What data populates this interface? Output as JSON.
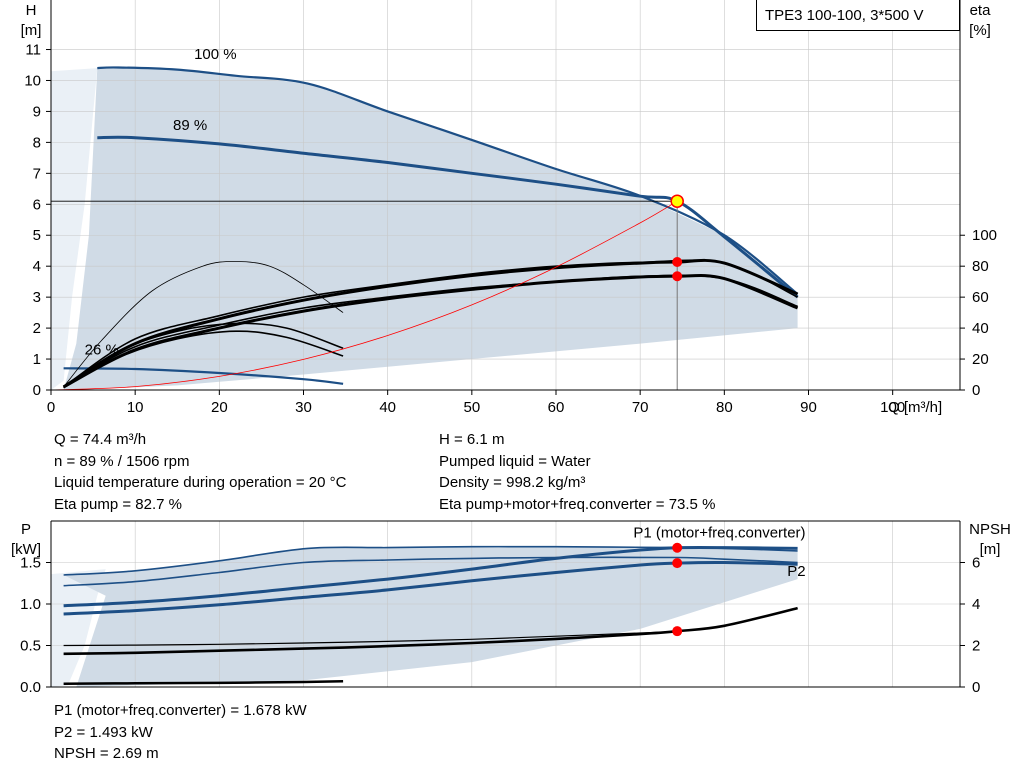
{
  "model_label": "TPE3 100-100, 3*500 V",
  "top_info": {
    "left": [
      "Q = 74.4 m³/h",
      "n = 89 % / 1506 rpm",
      "Liquid temperature during operation = 20 °C",
      "Eta pump = 82.7 %"
    ],
    "right": [
      "H = 6.1 m",
      "Pumped liquid = Water",
      "Density = 998.2 kg/m³",
      "Eta pump+motor+freq.converter = 73.5 %"
    ]
  },
  "bottom_info": [
    "P1 (motor+freq.converter) = 1.678 kW",
    "P2 = 1.493 kW",
    "NPSH = 2.69 m"
  ],
  "colors": {
    "curve_blue": "#1d4f86",
    "area_fill": "#d0dbe6",
    "area_fill_light": "#eaf0f6",
    "operating_point": "#ff0000",
    "system_curve": "#ff0000"
  },
  "chart_data": [
    {
      "type": "line",
      "name": "head_efficiency",
      "xlabel": "Q [m³/h]",
      "ylabel": "H\n[m]",
      "ylabel_right": "eta\n[%]",
      "x_ticks": [
        0,
        10,
        20,
        30,
        40,
        50,
        60,
        70,
        80,
        90,
        100
      ],
      "y_ticks": [
        0,
        1,
        2,
        3,
        4,
        5,
        6,
        7,
        8,
        9,
        10,
        11
      ],
      "y_right_ticks": [
        0,
        20,
        40,
        60,
        80,
        100
      ],
      "xlim": [
        0,
        108
      ],
      "ylim": [
        0,
        12.6
      ],
      "y_right_lim": [
        0,
        252
      ],
      "grid": true,
      "curve_labels": [
        {
          "text": "100 %",
          "x": 17,
          "y": 10.7
        },
        {
          "text": "89 %",
          "x": 14.5,
          "y": 8.4
        },
        {
          "text": "26 %",
          "x": 4,
          "y": 1.15
        }
      ],
      "series": [
        {
          "role": "head",
          "speed": "100 %",
          "x": [
            5.5,
            8,
            15,
            22,
            30.5,
            40,
            50,
            60,
            70,
            80,
            88.7
          ],
          "y": [
            10.4,
            10.42,
            10.35,
            10.15,
            9.9,
            9.0,
            8.08,
            7.14,
            6.27,
            5.0,
            3.1
          ]
        },
        {
          "role": "head",
          "speed": "89 %",
          "x": [
            5.5,
            10,
            20,
            30,
            40,
            50,
            60,
            70,
            74.4,
            80,
            88.7
          ],
          "y": [
            8.15,
            8.15,
            7.95,
            7.65,
            7.35,
            7.0,
            6.65,
            6.26,
            6.1,
            4.95,
            3.0
          ]
        },
        {
          "role": "head",
          "speed": "26 %",
          "x": [
            1.5,
            10,
            20,
            30,
            34.7
          ],
          "y": [
            0.7,
            0.68,
            0.55,
            0.35,
            0.2
          ]
        },
        {
          "role": "eta pump+motor+freq.converter",
          "speed": "100 %",
          "x": [
            1.5,
            10,
            20,
            30,
            40,
            50,
            60,
            70,
            80,
            88.7
          ],
          "y_eta": [
            2,
            33,
            48,
            60,
            68,
            75,
            80,
            82.5,
            82,
            60
          ]
        },
        {
          "role": "eta pump",
          "speed": "100 %",
          "x": [
            1.5,
            10,
            20,
            30,
            40,
            50,
            60,
            70,
            80,
            88.7
          ],
          "y_eta": [
            2,
            28,
            42,
            53,
            60,
            66,
            70,
            73.5,
            72,
            54
          ]
        },
        {
          "role": "eta pump",
          "speed": "89 %",
          "x": [
            1.5,
            10,
            20,
            30,
            40,
            50,
            60,
            70,
            74.4,
            80,
            88.7
          ],
          "y_eta": [
            2,
            30,
            46,
            58,
            67,
            74,
            79,
            82,
            82.7,
            82,
            62
          ]
        },
        {
          "role": "eta pump+motor+freq.converter",
          "speed": "89 %",
          "x": [
            1.5,
            10,
            20,
            30,
            40,
            50,
            60,
            70,
            74.4,
            80,
            88.7
          ],
          "y_eta": [
            2,
            26,
            40,
            51,
            59,
            65,
            70,
            73,
            73.5,
            72,
            53
          ]
        },
        {
          "role": "eta pump",
          "speed": "26 %",
          "x": [
            1.5,
            8,
            15,
            22,
            28,
            34.7
          ],
          "y_eta": [
            1.5,
            25,
            38,
            43,
            40,
            27
          ]
        },
        {
          "role": "eta pump+motor+freq.converter",
          "speed": "26 %",
          "x": [
            1.5,
            8,
            15,
            22,
            28,
            34.7
          ],
          "y_eta": [
            1.5,
            21,
            33,
            38,
            34,
            22
          ]
        },
        {
          "role": "eta",
          "speed": "min",
          "x": [
            1.5,
            6,
            12,
            18,
            22,
            26,
            30,
            34.7
          ],
          "y_eta": [
            2,
            32,
            64,
            80,
            83,
            80,
            68,
            50
          ]
        },
        {
          "role": "system curve",
          "x": [
            0,
            10,
            20,
            30,
            40,
            50,
            60,
            70,
            74.4
          ],
          "y": [
            0.0,
            0.11,
            0.44,
            0.99,
            1.76,
            2.75,
            3.97,
            5.4,
            6.1
          ]
        }
      ],
      "operating_point": {
        "x": 74.4,
        "y": 6.1
      },
      "efficiency_points": [
        {
          "x": 74.4,
          "y_eta": 82.7
        },
        {
          "x": 74.4,
          "y_eta": 73.5
        }
      ]
    },
    {
      "type": "line",
      "name": "power_npsh",
      "ylabel": "P\n[kW]",
      "ylabel_right": "NPSH\n[m]",
      "xlim": [
        0,
        108
      ],
      "ylim": [
        0,
        2.0
      ],
      "y_right_lim": [
        0,
        8
      ],
      "y_ticks": [
        "0.0",
        "0.5",
        "1.0",
        "1.5"
      ],
      "y_right_ticks": [
        0,
        2,
        4,
        6
      ],
      "grid": true,
      "series_labels": [
        {
          "text": "P1 (motor+freq.converter)",
          "x": 88.7,
          "y": 1.8
        },
        {
          "text": "P2",
          "x": 88.7,
          "y": 1.34
        }
      ],
      "series": [
        {
          "role": "P1",
          "speed": "100 %",
          "x": [
            1.5,
            10,
            20,
            30.5,
            40,
            50,
            60,
            74.4,
            80,
            88.7
          ],
          "y": [
            1.35,
            1.4,
            1.52,
            1.67,
            1.68,
            1.69,
            1.69,
            1.68,
            1.67,
            1.64
          ]
        },
        {
          "role": "P2",
          "speed": "100 %",
          "x": [
            1.5,
            10,
            20,
            30,
            40,
            50,
            60,
            74.4,
            80,
            88.7
          ],
          "y": [
            1.22,
            1.27,
            1.38,
            1.5,
            1.53,
            1.55,
            1.56,
            1.56,
            1.54,
            1.5
          ]
        },
        {
          "role": "P1",
          "speed": "89 %",
          "x": [
            1.5,
            10,
            20,
            30,
            40,
            50,
            60,
            70,
            74.4,
            80,
            88.7
          ],
          "y": [
            0.98,
            1.02,
            1.1,
            1.2,
            1.3,
            1.42,
            1.55,
            1.65,
            1.678,
            1.68,
            1.67
          ]
        },
        {
          "role": "P2",
          "speed": "89 %",
          "x": [
            1.5,
            10,
            20,
            30,
            40,
            50,
            60,
            70,
            74.4,
            80,
            88.7
          ],
          "y": [
            0.88,
            0.92,
            0.99,
            1.08,
            1.17,
            1.28,
            1.38,
            1.47,
            1.493,
            1.5,
            1.48
          ]
        },
        {
          "role": "P1/P2 26 %",
          "x": [
            1.5,
            10,
            20,
            30,
            34.7
          ],
          "y": [
            0.04,
            0.045,
            0.05,
            0.06,
            0.07
          ]
        },
        {
          "role": "NPSH",
          "axis": "right",
          "x": [
            1.5,
            10,
            20,
            30,
            40,
            50,
            60,
            70,
            74.4,
            80,
            88.7
          ],
          "y": [
            1.6,
            1.65,
            1.75,
            1.85,
            1.97,
            2.12,
            2.32,
            2.55,
            2.69,
            2.95,
            3.8
          ]
        },
        {
          "role": "NPSH",
          "axis": "right",
          "variant": "upper",
          "x": [
            1.5,
            10,
            20,
            30,
            40,
            50,
            60,
            70,
            74.4,
            80,
            88.7
          ],
          "y": [
            2.0,
            2.02,
            2.06,
            2.12,
            2.2,
            2.3,
            2.45,
            2.6,
            2.69,
            2.95,
            3.8
          ]
        }
      ],
      "operating_points": [
        {
          "x": 74.4,
          "y": 1.678
        },
        {
          "x": 74.4,
          "y": 1.493
        },
        {
          "x": 74.4,
          "y_right": 2.69
        }
      ]
    }
  ]
}
